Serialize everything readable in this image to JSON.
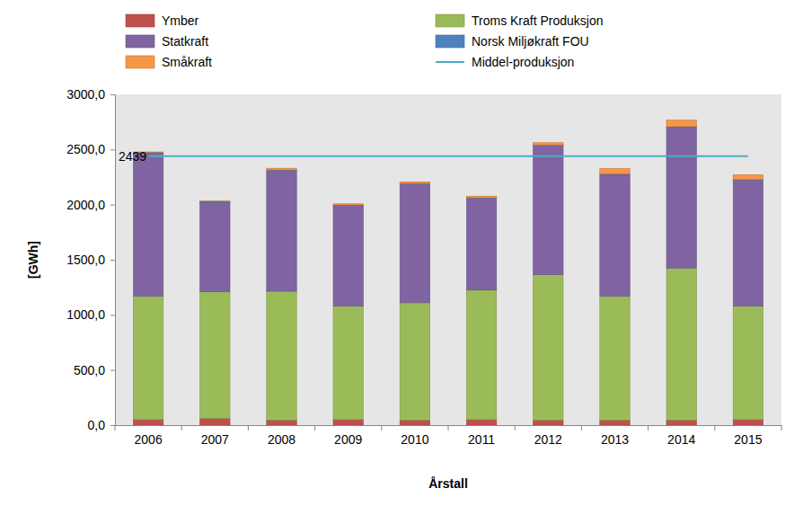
{
  "chart_data": {
    "type": "bar",
    "stacked": true,
    "grid": false,
    "legend": "top",
    "x_label": "Årstall",
    "y_label": "[GWh]",
    "categories": [
      "2006",
      "2007",
      "2008",
      "2009",
      "2010",
      "2011",
      "2012",
      "2013",
      "2014",
      "2015"
    ],
    "ylim": [
      0,
      3000
    ],
    "yticks": [
      {
        "value": 0,
        "label": "0,0"
      },
      {
        "value": 500,
        "label": "500,0"
      },
      {
        "value": 1000,
        "label": "1000,0"
      },
      {
        "value": 1500,
        "label": "1500,0"
      },
      {
        "value": 2000,
        "label": "2000,0"
      },
      {
        "value": 2500,
        "label": "2500,0"
      },
      {
        "value": 3000,
        "label": "3000,0"
      }
    ],
    "series": [
      {
        "name": "Ymber",
        "color": "#c0504d",
        "values": [
          50,
          60,
          45,
          50,
          45,
          50,
          45,
          45,
          45,
          50
        ]
      },
      {
        "name": "Troms Kraft Produksjon",
        "color": "#9bbb59",
        "values": [
          1120,
          1150,
          1170,
          1030,
          1065,
          1175,
          1320,
          1125,
          1380,
          1030
        ]
      },
      {
        "name": "Statkraft",
        "color": "#8064a2",
        "values": [
          1295,
          810,
          1095,
          915,
          1080,
          835,
          1175,
          1105,
          1280,
          1145
        ]
      },
      {
        "name": "Norsk Miljøkraft FOU",
        "color": "#4f81bd",
        "values": [
          10,
          10,
          5,
          2,
          2,
          2,
          2,
          2,
          2,
          2
        ]
      },
      {
        "name": "Småkraft",
        "color": "#f79646",
        "values": [
          3,
          2,
          15,
          10,
          15,
          15,
          20,
          50,
          60,
          45
        ]
      },
      {
        "name": "Middel-produksjon",
        "type": "line",
        "color": "#4bacc6",
        "values": [
          2439,
          2439,
          2439,
          2439,
          2439,
          2439,
          2439,
          2439,
          2439,
          2439
        ]
      }
    ],
    "annotations": [
      {
        "text": "2439",
        "value": 2439
      }
    ]
  }
}
